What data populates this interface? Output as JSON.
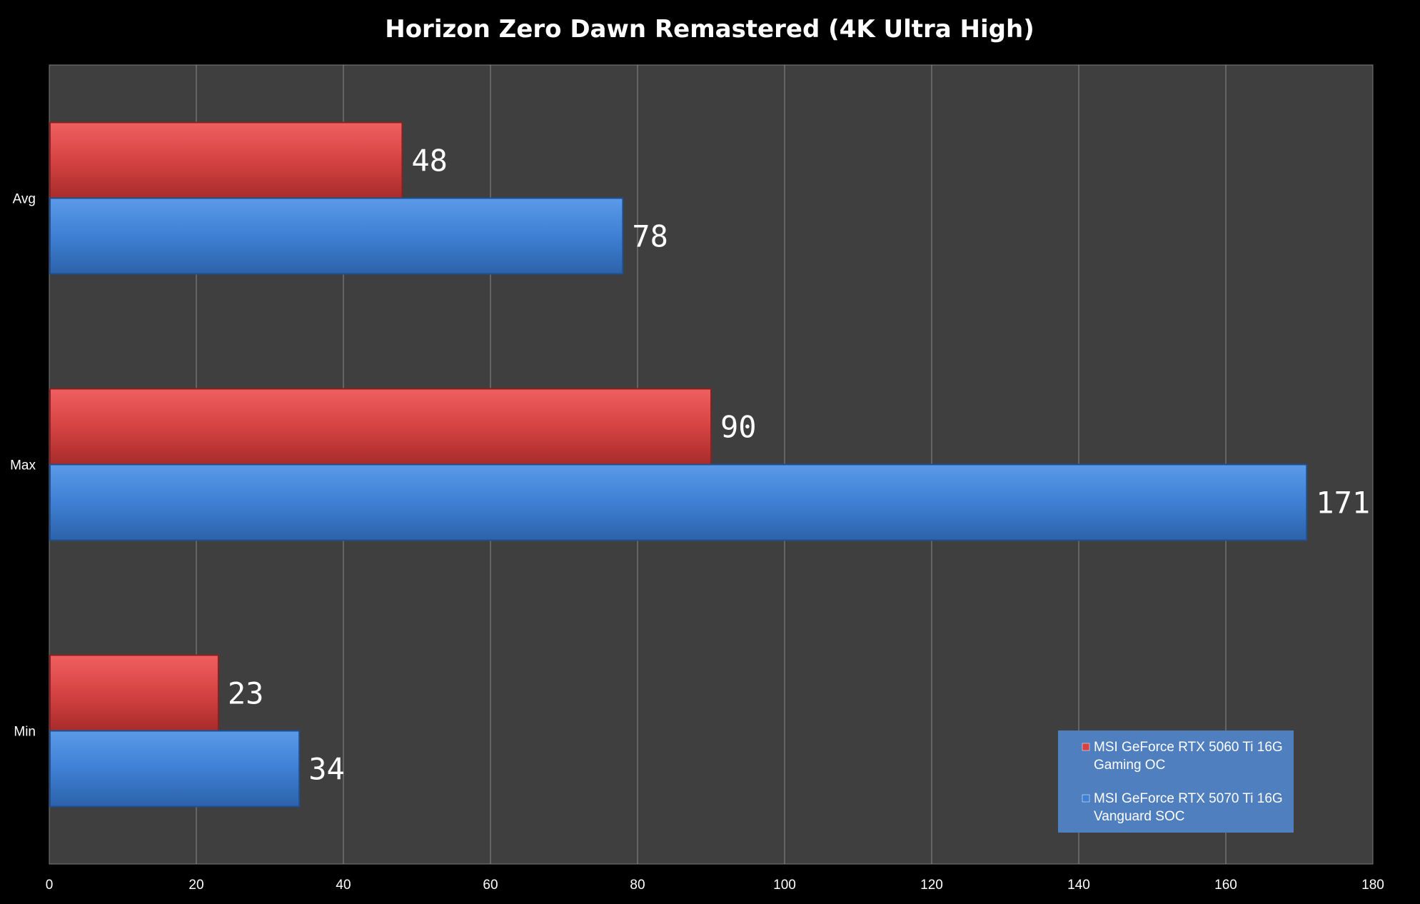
{
  "chart_data": {
    "type": "bar",
    "orientation": "horizontal",
    "title": "Horizon Zero Dawn Remastered (4K Ultra High)",
    "categories": [
      "Avg",
      "Max",
      "Min"
    ],
    "series": [
      {
        "name": "MSI GeForce RTX 5060 Ti 16G Gaming OC",
        "legend_lines": [
          "MSI GeForce RTX 5060 Ti 16G",
          "Gaming OC"
        ],
        "values": [
          48,
          90,
          23
        ],
        "color": "#d94040"
      },
      {
        "name": "MSI GeForce RTX 5070 Ti 16G Vanguard SOC",
        "legend_lines": [
          "MSI GeForce RTX 5070 Ti 16G",
          "Vanguard SOC"
        ],
        "values": [
          78,
          171,
          34
        ],
        "color": "#3f80d4"
      }
    ],
    "xlim": [
      0,
      180
    ],
    "xticks": [
      0,
      20,
      40,
      60,
      80,
      100,
      120,
      140,
      160,
      180
    ],
    "grid": true,
    "legend_position": "bottom-right",
    "background": "#3f3f3f",
    "gridline_color": "#8a8a8a",
    "legend_background": "#4f7fbf"
  }
}
